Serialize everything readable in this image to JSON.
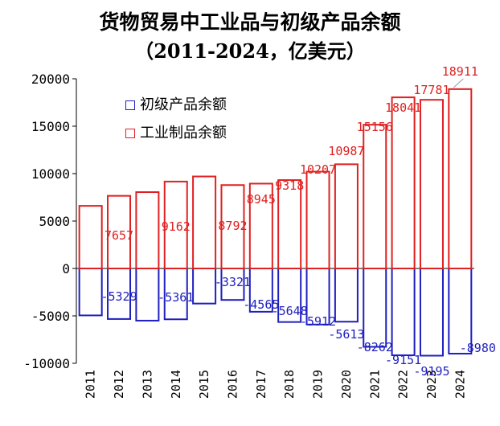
{
  "chart_data": {
    "type": "bar",
    "title": "货物贸易中工业品与初级产品余额",
    "subtitle": "（2011-2024，亿美元）",
    "categories": [
      "2011",
      "2012",
      "2013",
      "2014",
      "2015",
      "2016",
      "2017",
      "2018",
      "2019",
      "2020",
      "2021",
      "2022",
      "2023",
      "2024"
    ],
    "ylim": [
      -10000,
      20000
    ],
    "yticks": [
      -10000,
      -5000,
      0,
      5000,
      10000,
      15000,
      20000
    ],
    "legend": "top-left",
    "series": [
      {
        "name": "初级产品余额",
        "color": "#1f1fbf",
        "values": [
          -4950,
          -5329,
          -5500,
          -5361,
          -3700,
          -3321,
          -4565,
          -5648,
          -5912,
          -5613,
          -8262,
          -9151,
          -9195,
          -8980
        ],
        "labels": [
          null,
          "-5329",
          null,
          "-5361",
          null,
          "-3321",
          "-4565",
          "-5648",
          "-5912",
          "-5613",
          "-8262",
          "-9151",
          "-9195",
          "-8980"
        ]
      },
      {
        "name": "工业制品余额",
        "color": "#e02020",
        "values": [
          6600,
          7657,
          8050,
          9162,
          9700,
          8792,
          8945,
          9318,
          10207,
          10987,
          15156,
          18041,
          17781,
          18911
        ],
        "labels": [
          null,
          "7657",
          null,
          "9162",
          null,
          "8792",
          "8945",
          "9318",
          "10207",
          "10987",
          "15156",
          "18041",
          "17781",
          "18911"
        ]
      }
    ]
  }
}
